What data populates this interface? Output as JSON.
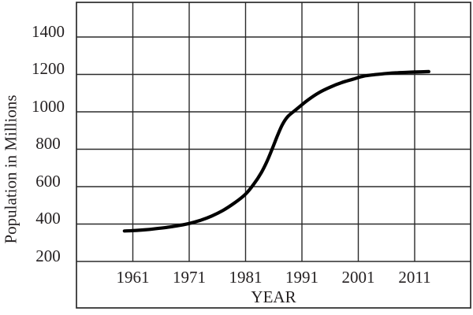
{
  "figure": {
    "background_color": "#ffffff",
    "text_color": "#231f20",
    "grid_color": "#2b2b2b",
    "curve_color": "#000000"
  },
  "chart_data": {
    "type": "line",
    "title": "",
    "xlabel": "YEAR",
    "ylabel": "Population in Millions",
    "x_ticks": [
      1961,
      1971,
      1981,
      1991,
      2001,
      2011
    ],
    "y_ticks": [
      200,
      400,
      600,
      800,
      1000,
      1200,
      1400
    ],
    "xlim": [
      1951,
      2021
    ],
    "ylim": [
      200,
      1585
    ],
    "grid": true,
    "legend": "none",
    "series": [
      {
        "name": "Population",
        "points": [
          [
            1959.5,
            363
          ],
          [
            1961,
            365
          ],
          [
            1963,
            369
          ],
          [
            1965,
            375
          ],
          [
            1967,
            382
          ],
          [
            1969,
            391
          ],
          [
            1971,
            403
          ],
          [
            1973,
            420
          ],
          [
            1975,
            443
          ],
          [
            1977,
            473
          ],
          [
            1979,
            512
          ],
          [
            1981,
            560
          ],
          [
            1982.5,
            615
          ],
          [
            1983.8,
            675
          ],
          [
            1984.8,
            735
          ],
          [
            1985.7,
            800
          ],
          [
            1986.6,
            868
          ],
          [
            1987.5,
            930
          ],
          [
            1988.5,
            975
          ],
          [
            1990,
            1013
          ],
          [
            1992,
            1062
          ],
          [
            1994,
            1102
          ],
          [
            1996,
            1132
          ],
          [
            1998,
            1156
          ],
          [
            2000,
            1174
          ],
          [
            2002,
            1191
          ],
          [
            2004,
            1199
          ],
          [
            2006,
            1205
          ],
          [
            2008,
            1209
          ],
          [
            2010,
            1212
          ],
          [
            2013.5,
            1215
          ]
        ]
      }
    ]
  }
}
